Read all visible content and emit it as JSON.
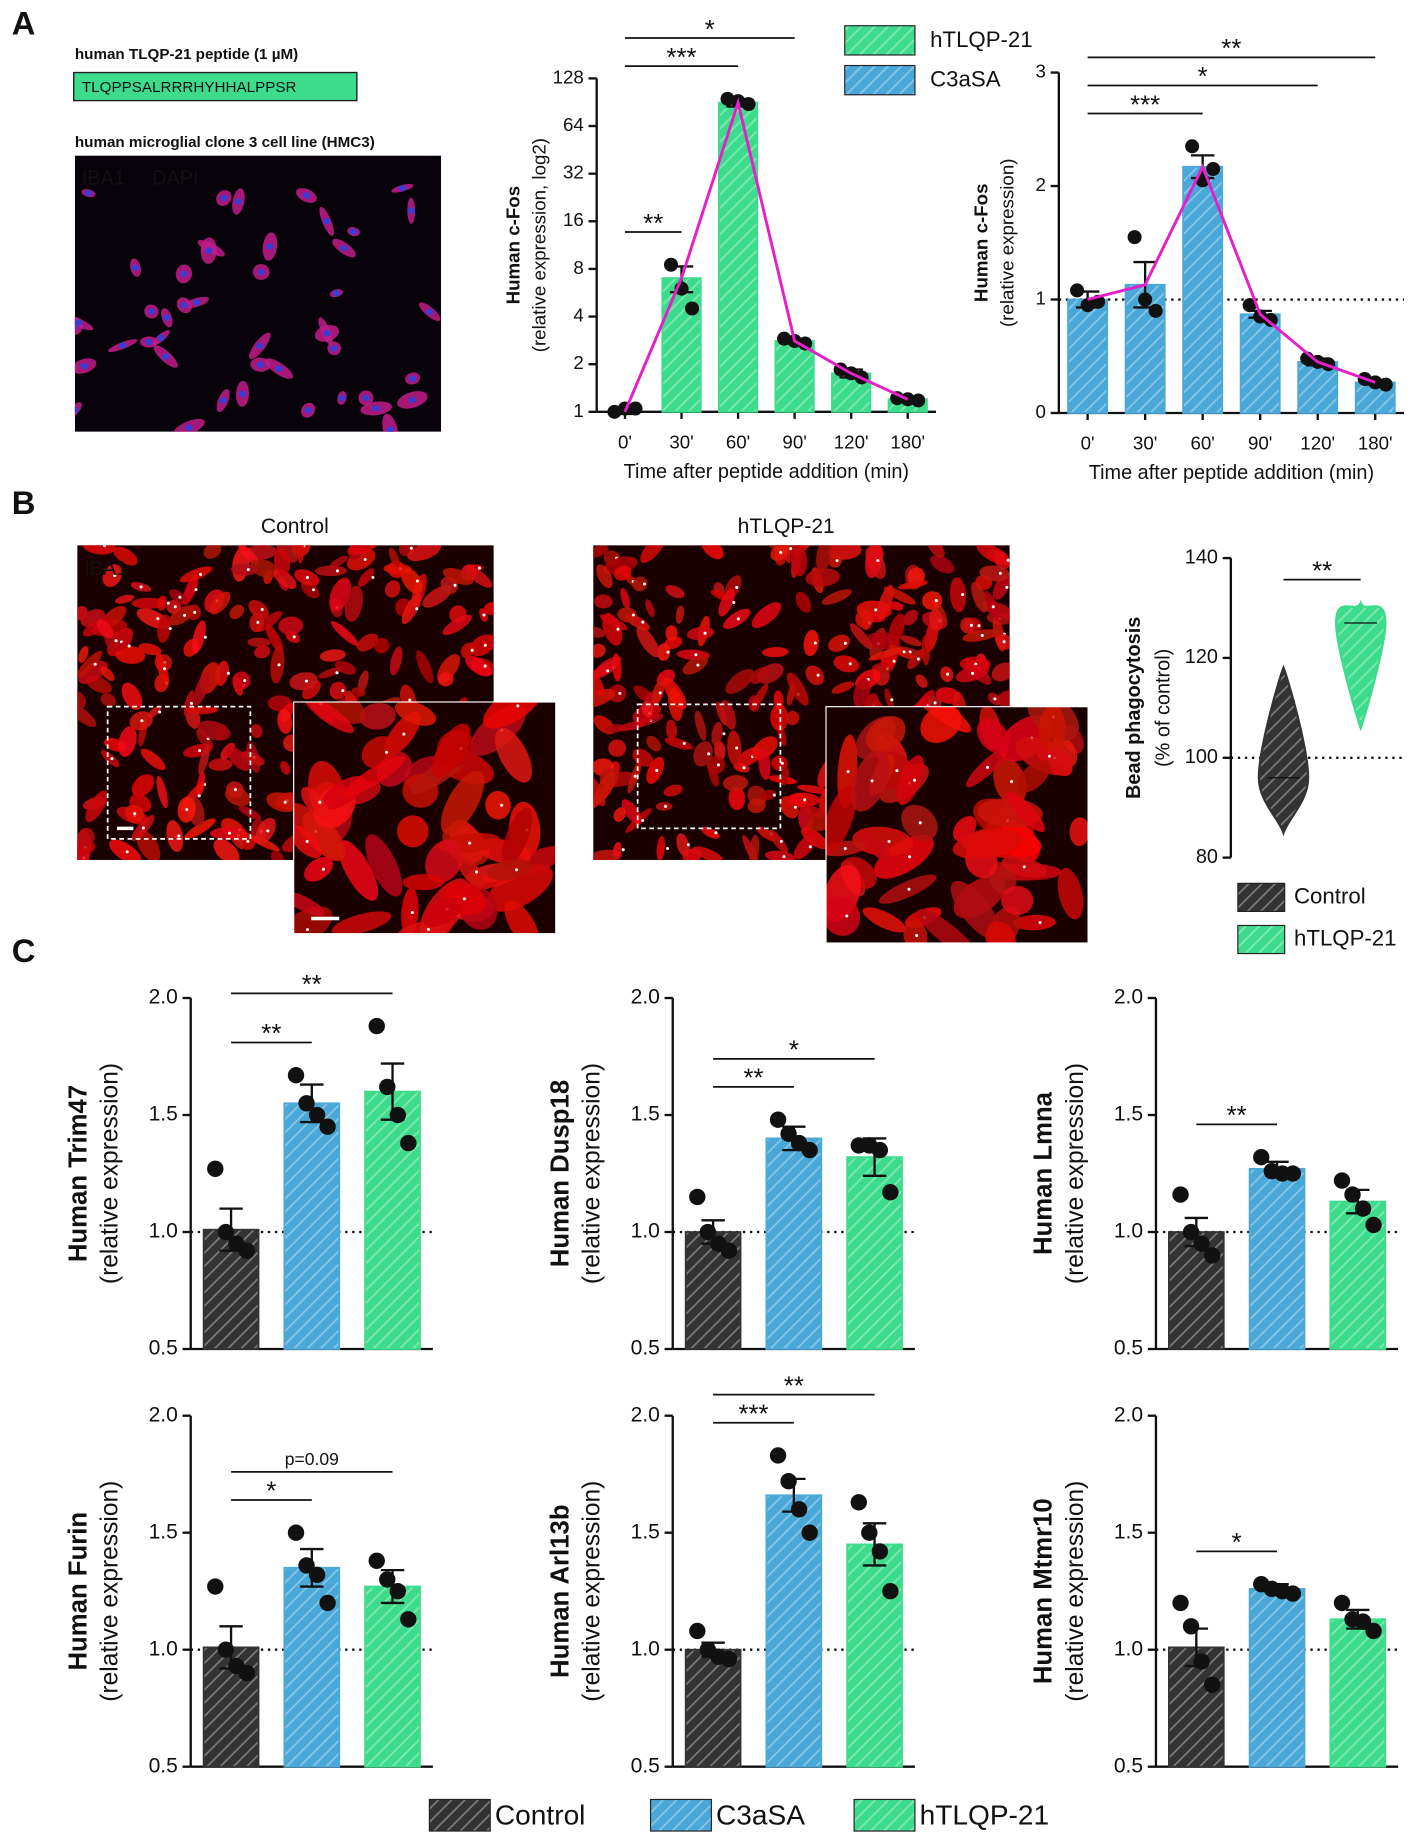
{
  "panel_labels": [
    "A",
    "B",
    "C"
  ],
  "peptide_label": "human TLQP-21 peptide (1 µM)",
  "peptide_sequence": "TLQPPSALRRRHYHHALPPSR",
  "cell_line": "human microglial clone 3 cell line (HMC3)",
  "stain_labels": [
    "IBA1",
    "DAPI"
  ],
  "micrographs": {
    "stain": "IBA1",
    "titles": [
      "Control",
      "hTLQP-21"
    ]
  },
  "legend_a": [
    {
      "name": "hTLQP-21",
      "color": "#3ddc8c"
    },
    {
      "name": "C3aSA",
      "color": "#4aa8d8"
    }
  ],
  "legend_c": [
    {
      "name": "Control",
      "color": "#333333"
    },
    {
      "name": "C3aSA",
      "color": "#4aa8d8"
    },
    {
      "name": "hTLQP-21",
      "color": "#3ddc8c"
    }
  ],
  "chart_data": [
    {
      "type": "bar",
      "ylabel": [
        "Human c-Fos",
        "(relative expression, log2)"
      ],
      "xlabel": "Time after peptide addition (min)",
      "categories": [
        "0'",
        "30'",
        "60'",
        "90'",
        "120'",
        "180'"
      ],
      "color": "#3ddc8c",
      "trend_color": "#e61fc8",
      "values": [
        1.0,
        7.0,
        90,
        2.8,
        1.75,
        1.2
      ],
      "errors": [
        0.03,
        1.3,
        5,
        0.1,
        0.1,
        0.03
      ],
      "points": [
        [
          1.0,
          1.05,
          1.05
        ],
        [
          8.5,
          6.0,
          4.5
        ],
        [
          95,
          92,
          88
        ],
        [
          2.9,
          2.8,
          2.7
        ],
        [
          1.85,
          1.75,
          1.65
        ],
        [
          1.22,
          1.2,
          1.18
        ]
      ],
      "log_scale": true,
      "ylim": [
        1,
        128
      ],
      "yticks": [
        1,
        2,
        4,
        8,
        16,
        32,
        64,
        128
      ],
      "significance": [
        {
          "label": "**",
          "between": [
            0,
            1
          ]
        },
        {
          "label": "***",
          "between": [
            0,
            2
          ]
        },
        {
          "label": "*",
          "between": [
            0,
            3
          ]
        }
      ]
    },
    {
      "type": "bar",
      "ylabel": [
        "Human c-Fos",
        "(relative expression)"
      ],
      "xlabel": "Time after peptide addition (min)",
      "categories": [
        "0'",
        "30'",
        "60'",
        "90'",
        "120'",
        "180'"
      ],
      "color": "#4aa8d8",
      "trend_color": "#e61fc8",
      "values": [
        1.0,
        1.13,
        2.17,
        0.87,
        0.45,
        0.27
      ],
      "errors": [
        0.07,
        0.2,
        0.1,
        0.03,
        0.03,
        0.02
      ],
      "points": [
        [
          1.08,
          0.95,
          0.98
        ],
        [
          1.55,
          1.0,
          0.9
        ],
        [
          2.35,
          2.05,
          2.15
        ],
        [
          0.95,
          0.85,
          0.82
        ],
        [
          0.48,
          0.45,
          0.43
        ],
        [
          0.3,
          0.27,
          0.25
        ]
      ],
      "ylim": [
        0,
        3
      ],
      "yticks": [
        0,
        1,
        2,
        3
      ],
      "reference_line": 1,
      "significance": [
        {
          "label": "***",
          "between": [
            0,
            2
          ]
        },
        {
          "label": "*",
          "between": [
            0,
            4
          ]
        },
        {
          "label": "**",
          "between": [
            0,
            5
          ]
        }
      ]
    },
    {
      "type": "violin",
      "ylabel": [
        "Bead phagocytosis",
        "(% of control)"
      ],
      "series": [
        {
          "name": "Control",
          "color": "#333333",
          "min": 85,
          "median": 96,
          "max": 118
        },
        {
          "name": "hTLQP-21",
          "color": "#3ddc8c",
          "min": 106,
          "median": 127,
          "max": 131
        }
      ],
      "ylim": [
        80,
        140
      ],
      "yticks": [
        80,
        100,
        120,
        140
      ],
      "reference_line": 100,
      "significance": [
        {
          "label": "**",
          "between": [
            0,
            1
          ]
        }
      ]
    },
    {
      "type": "bar",
      "ylabel": [
        "Human Trim47",
        "(relative expression)"
      ],
      "values": [
        1.01,
        1.55,
        1.6
      ],
      "errors": [
        0.09,
        0.08,
        0.12
      ],
      "points": [
        [
          1.27,
          1.0,
          0.95,
          0.92
        ],
        [
          1.67,
          1.55,
          1.5,
          1.45
        ],
        [
          1.88,
          1.62,
          1.5,
          1.38
        ]
      ],
      "ylim": [
        0.5,
        2.0
      ],
      "yticks": [
        0.5,
        {
          "value": 1,
          "label": "1.0"
        },
        1.5,
        {
          "value": 2,
          "label": "2.0"
        }
      ],
      "reference_line": 1,
      "significance": [
        {
          "label": "**",
          "between": [
            0,
            1
          ]
        },
        {
          "label": "**",
          "between": [
            0,
            2
          ]
        }
      ]
    },
    {
      "type": "bar",
      "ylabel": [
        "Human Dusp18",
        "(relative expression)"
      ],
      "values": [
        1.0,
        1.4,
        1.32
      ],
      "errors": [
        0.05,
        0.05,
        0.08
      ],
      "points": [
        [
          1.15,
          1.0,
          0.95,
          0.92
        ],
        [
          1.48,
          1.42,
          1.38,
          1.35
        ],
        [
          1.37,
          1.37,
          1.35,
          1.17
        ]
      ],
      "ylim": [
        0.5,
        2.0
      ],
      "yticks": [
        0.5,
        {
          "value": 1,
          "label": "1.0"
        },
        1.5,
        {
          "value": 2,
          "label": "2.0"
        }
      ],
      "reference_line": 1,
      "significance": [
        {
          "label": "**",
          "between": [
            0,
            1
          ]
        },
        {
          "label": "*",
          "between": [
            0,
            2
          ]
        }
      ]
    },
    {
      "type": "bar",
      "ylabel": [
        "Human Lmna",
        "(relative expression)"
      ],
      "values": [
        1.0,
        1.27,
        1.13
      ],
      "errors": [
        0.06,
        0.03,
        0.05
      ],
      "points": [
        [
          1.16,
          1.0,
          0.95,
          0.9
        ],
        [
          1.32,
          1.26,
          1.25,
          1.25
        ],
        [
          1.22,
          1.16,
          1.1,
          1.03
        ]
      ],
      "ylim": [
        0.5,
        2.0
      ],
      "yticks": [
        0.5,
        {
          "value": 1,
          "label": "1.0"
        },
        1.5,
        {
          "value": 2,
          "label": "2.0"
        }
      ],
      "reference_line": 1,
      "significance": [
        {
          "label": "**",
          "between": [
            0,
            1
          ]
        }
      ]
    },
    {
      "type": "bar",
      "ylabel": [
        "Human Furin",
        "(relative expression)"
      ],
      "values": [
        1.01,
        1.35,
        1.27
      ],
      "errors": [
        0.09,
        0.08,
        0.07
      ],
      "points": [
        [
          1.27,
          1.0,
          0.93,
          0.9
        ],
        [
          1.5,
          1.36,
          1.32,
          1.2
        ],
        [
          1.38,
          1.3,
          1.25,
          1.13
        ]
      ],
      "ylim": [
        0.5,
        2.0
      ],
      "yticks": [
        0.5,
        {
          "value": 1,
          "label": "1.0"
        },
        1.5,
        {
          "value": 2,
          "label": "2.0"
        }
      ],
      "reference_line": 1,
      "significance": [
        {
          "label": "*",
          "between": [
            0,
            1
          ]
        },
        {
          "label": "p=0.09",
          "between": [
            0,
            2
          ]
        }
      ]
    },
    {
      "type": "bar",
      "ylabel": [
        "Human Arl13b",
        "(relative expression)"
      ],
      "values": [
        1.0,
        1.66,
        1.45
      ],
      "errors": [
        0.03,
        0.07,
        0.09
      ],
      "points": [
        [
          1.08,
          1.0,
          0.97,
          0.96
        ],
        [
          1.83,
          1.72,
          1.6,
          1.5
        ],
        [
          1.63,
          1.5,
          1.42,
          1.25
        ]
      ],
      "ylim": [
        0.5,
        2.0
      ],
      "yticks": [
        0.5,
        {
          "value": 1,
          "label": "1.0"
        },
        1.5,
        {
          "value": 2,
          "label": "2.0"
        }
      ],
      "reference_line": 1,
      "significance": [
        {
          "label": "***",
          "between": [
            0,
            1
          ]
        },
        {
          "label": "**",
          "between": [
            0,
            2
          ]
        }
      ]
    },
    {
      "type": "bar",
      "ylabel": [
        "Human Mtmr10",
        "(relative expression)"
      ],
      "values": [
        1.01,
        1.26,
        1.13
      ],
      "errors": [
        0.08,
        0.02,
        0.04
      ],
      "points": [
        [
          1.2,
          1.1,
          0.95,
          0.85
        ],
        [
          1.28,
          1.26,
          1.25,
          1.24
        ],
        [
          1.2,
          1.13,
          1.12,
          1.08
        ]
      ],
      "ylim": [
        0.5,
        2.0
      ],
      "yticks": [
        0.5,
        {
          "value": 1,
          "label": "1.0"
        },
        1.5,
        {
          "value": 2,
          "label": "2.0"
        }
      ],
      "reference_line": 1,
      "significance": [
        {
          "label": "*",
          "between": [
            0,
            1
          ]
        }
      ]
    }
  ]
}
